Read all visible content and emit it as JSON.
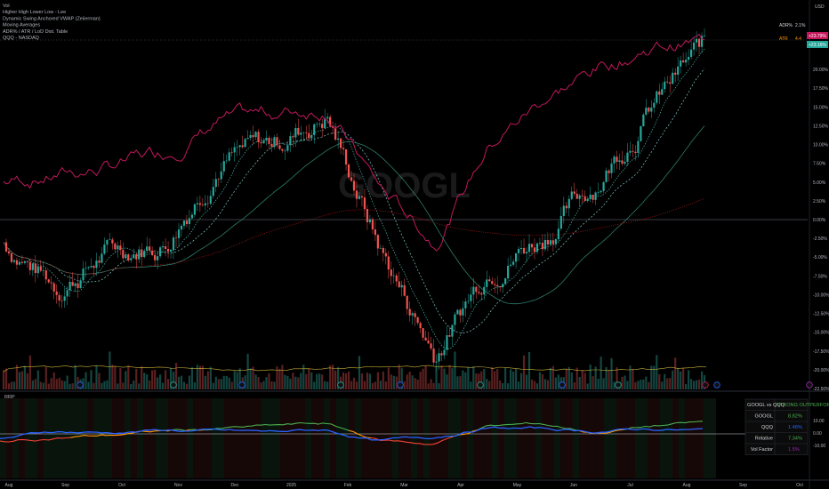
{
  "header": {
    "legend": [
      "Vol",
      "Higher High Lower Low - Lee",
      "Dynamic Swing Anchored VWAP (Zeiierman)",
      "Moving Averages",
      "ADR% / ATR / LoD Dist. Table",
      "QQQ - NASDAQ"
    ],
    "currency": "USD",
    "adr_label": "ADR%",
    "adr_value": "2.1%",
    "atr_label": "ATR",
    "atr_value": "4.4",
    "price_badge_1": "+23.79%",
    "price_badge_2": "+23.16%"
  },
  "watermark": "GOOGL",
  "indicator": {
    "name": "RRP"
  },
  "price_axis": {
    "labels": [
      "20.00%",
      "17.50%",
      "15.00%",
      "12.50%",
      "10.00%",
      "7.50%",
      "5.00%",
      "2.50%",
      "0.00%",
      "-2.50%",
      "-5.00%",
      "-7.50%",
      "-10.00%",
      "-12.50%",
      "-15.00%",
      "-17.50%",
      "-20.00%",
      "-22.50%"
    ]
  },
  "indicator_axis": {
    "labels": [
      "10.00",
      "0.00",
      "-10.00"
    ]
  },
  "time_axis": {
    "labels": [
      "Aug",
      "Sep",
      "Oct",
      "Nov",
      "Dec",
      "2025",
      "Feb",
      "Mar",
      "Apr",
      "May",
      "Jun",
      "Jul",
      "Aug",
      "Sep",
      "Oct"
    ]
  },
  "table": {
    "header_left": "GOOGL vs QQQ",
    "header_right": "STRONG OUTPERFORM",
    "rows": [
      {
        "label": "GOOGL",
        "value": "8.82%"
      },
      {
        "label": "QQQ",
        "value": "1.48%"
      },
      {
        "label": "Relative",
        "value": "7.34%"
      },
      {
        "label": "Vol Factor",
        "value": "1.5%"
      }
    ]
  },
  "colors": {
    "up": "#26a69a",
    "down": "#ef5350",
    "qqq_line": "#c2185b",
    "indicator_blue": "#2962ff",
    "indicator_green": "#4caf50",
    "indicator_orange": "#ff9800",
    "indicator_red": "#f44336",
    "table_green": "#4caf50",
    "table_blue": "#2962ff",
    "table_purple": "#9c27b0"
  },
  "chart_data": [
    {
      "type": "candlestick",
      "series": [
        {
          "name": "GOOGL",
          "x": [
            "Aug",
            "Sep",
            "Oct",
            "Nov",
            "Dec",
            "2025",
            "Feb",
            "Mar",
            "Apr",
            "May",
            "Jun",
            "Jul",
            "Aug",
            "Sep"
          ],
          "values": [
            -3.0,
            -9.0,
            -4.0,
            -3.0,
            8.0,
            10.0,
            14.0,
            -4.0,
            -18.0,
            -6.0,
            -2.0,
            5.0,
            15.0,
            23.16
          ]
        },
        {
          "name": "QQQ - NASDAQ",
          "x": [
            "Aug",
            "Sep",
            "Oct",
            "Nov",
            "Dec",
            "2025",
            "Feb",
            "Mar",
            "Apr",
            "May",
            "Jun",
            "Jul",
            "Aug",
            "Sep"
          ],
          "values": [
            5.0,
            6.0,
            7.0,
            9.0,
            13.0,
            14.0,
            15.0,
            4.0,
            -3.0,
            10.0,
            16.0,
            20.0,
            23.0,
            23.79
          ]
        }
      ],
      "ylim": [
        -22.5,
        25
      ]
    },
    {
      "type": "line",
      "title": "RRP",
      "x": [
        "Aug",
        "Sep",
        "Oct",
        "Nov",
        "Dec",
        "2025",
        "Feb",
        "Mar",
        "Apr",
        "May",
        "Jun",
        "Jul",
        "Aug",
        "Sep"
      ],
      "series": [
        {
          "values": [
            -4,
            2,
            1,
            3,
            2,
            1,
            3,
            -6,
            -3,
            5,
            4,
            2,
            4,
            3
          ]
        },
        {
          "values": [
            -6,
            -3,
            -1,
            2,
            4,
            6,
            8,
            -5,
            -8,
            6,
            8,
            1,
            6,
            9
          ]
        }
      ],
      "ylim": [
        -15,
        15
      ]
    }
  ]
}
